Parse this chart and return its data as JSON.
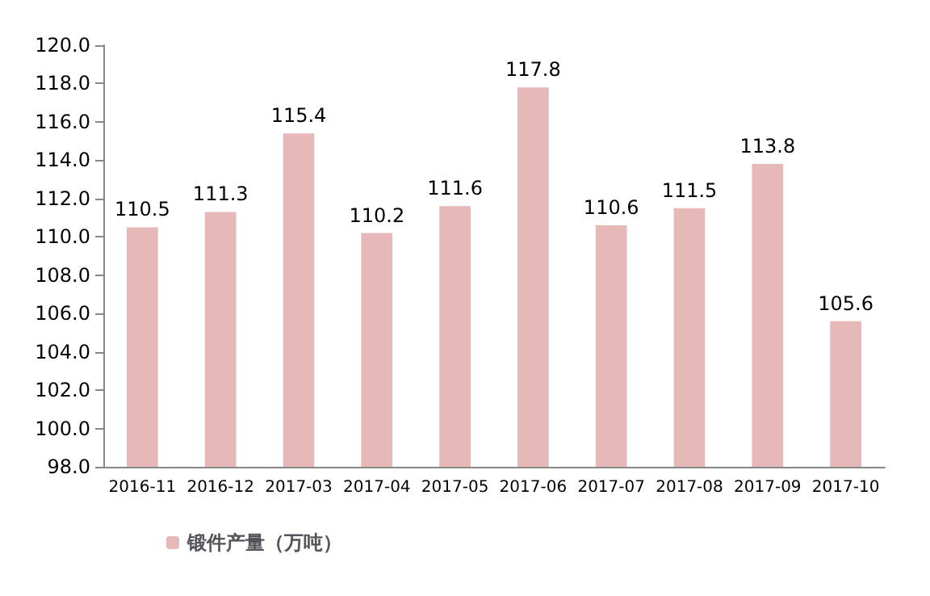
{
  "chart_data": {
    "type": "bar",
    "categories": [
      "2016-11",
      "2016-12",
      "2017-03",
      "2017-04",
      "2017-05",
      "2017-06",
      "2017-07",
      "2017-08",
      "2017-09",
      "2017-10"
    ],
    "series": [
      {
        "name": "锻件产量（万吨）",
        "color": "#e6b9b8",
        "values": [
          110.5,
          111.3,
          115.4,
          110.2,
          111.6,
          117.8,
          110.6,
          111.5,
          113.8,
          105.6
        ]
      }
    ],
    "ylim": [
      98,
      120
    ],
    "yticks": [
      {
        "value": 98,
        "label": "98.0"
      },
      {
        "value": 100,
        "label": "100.0"
      },
      {
        "value": 102,
        "label": "102.0"
      },
      {
        "value": 104,
        "label": "104.0"
      },
      {
        "value": 106,
        "label": "106.0"
      },
      {
        "value": 108,
        "label": "108.0"
      },
      {
        "value": 110,
        "label": "110.0"
      },
      {
        "value": 112,
        "label": "112.0"
      },
      {
        "value": 114,
        "label": "114.0"
      },
      {
        "value": 116,
        "label": "116.0"
      },
      {
        "value": 118,
        "label": "118.0"
      },
      {
        "value": 120,
        "label": "120.0"
      }
    ],
    "grid": false,
    "legend": "bottom left",
    "data_labels": true
  }
}
